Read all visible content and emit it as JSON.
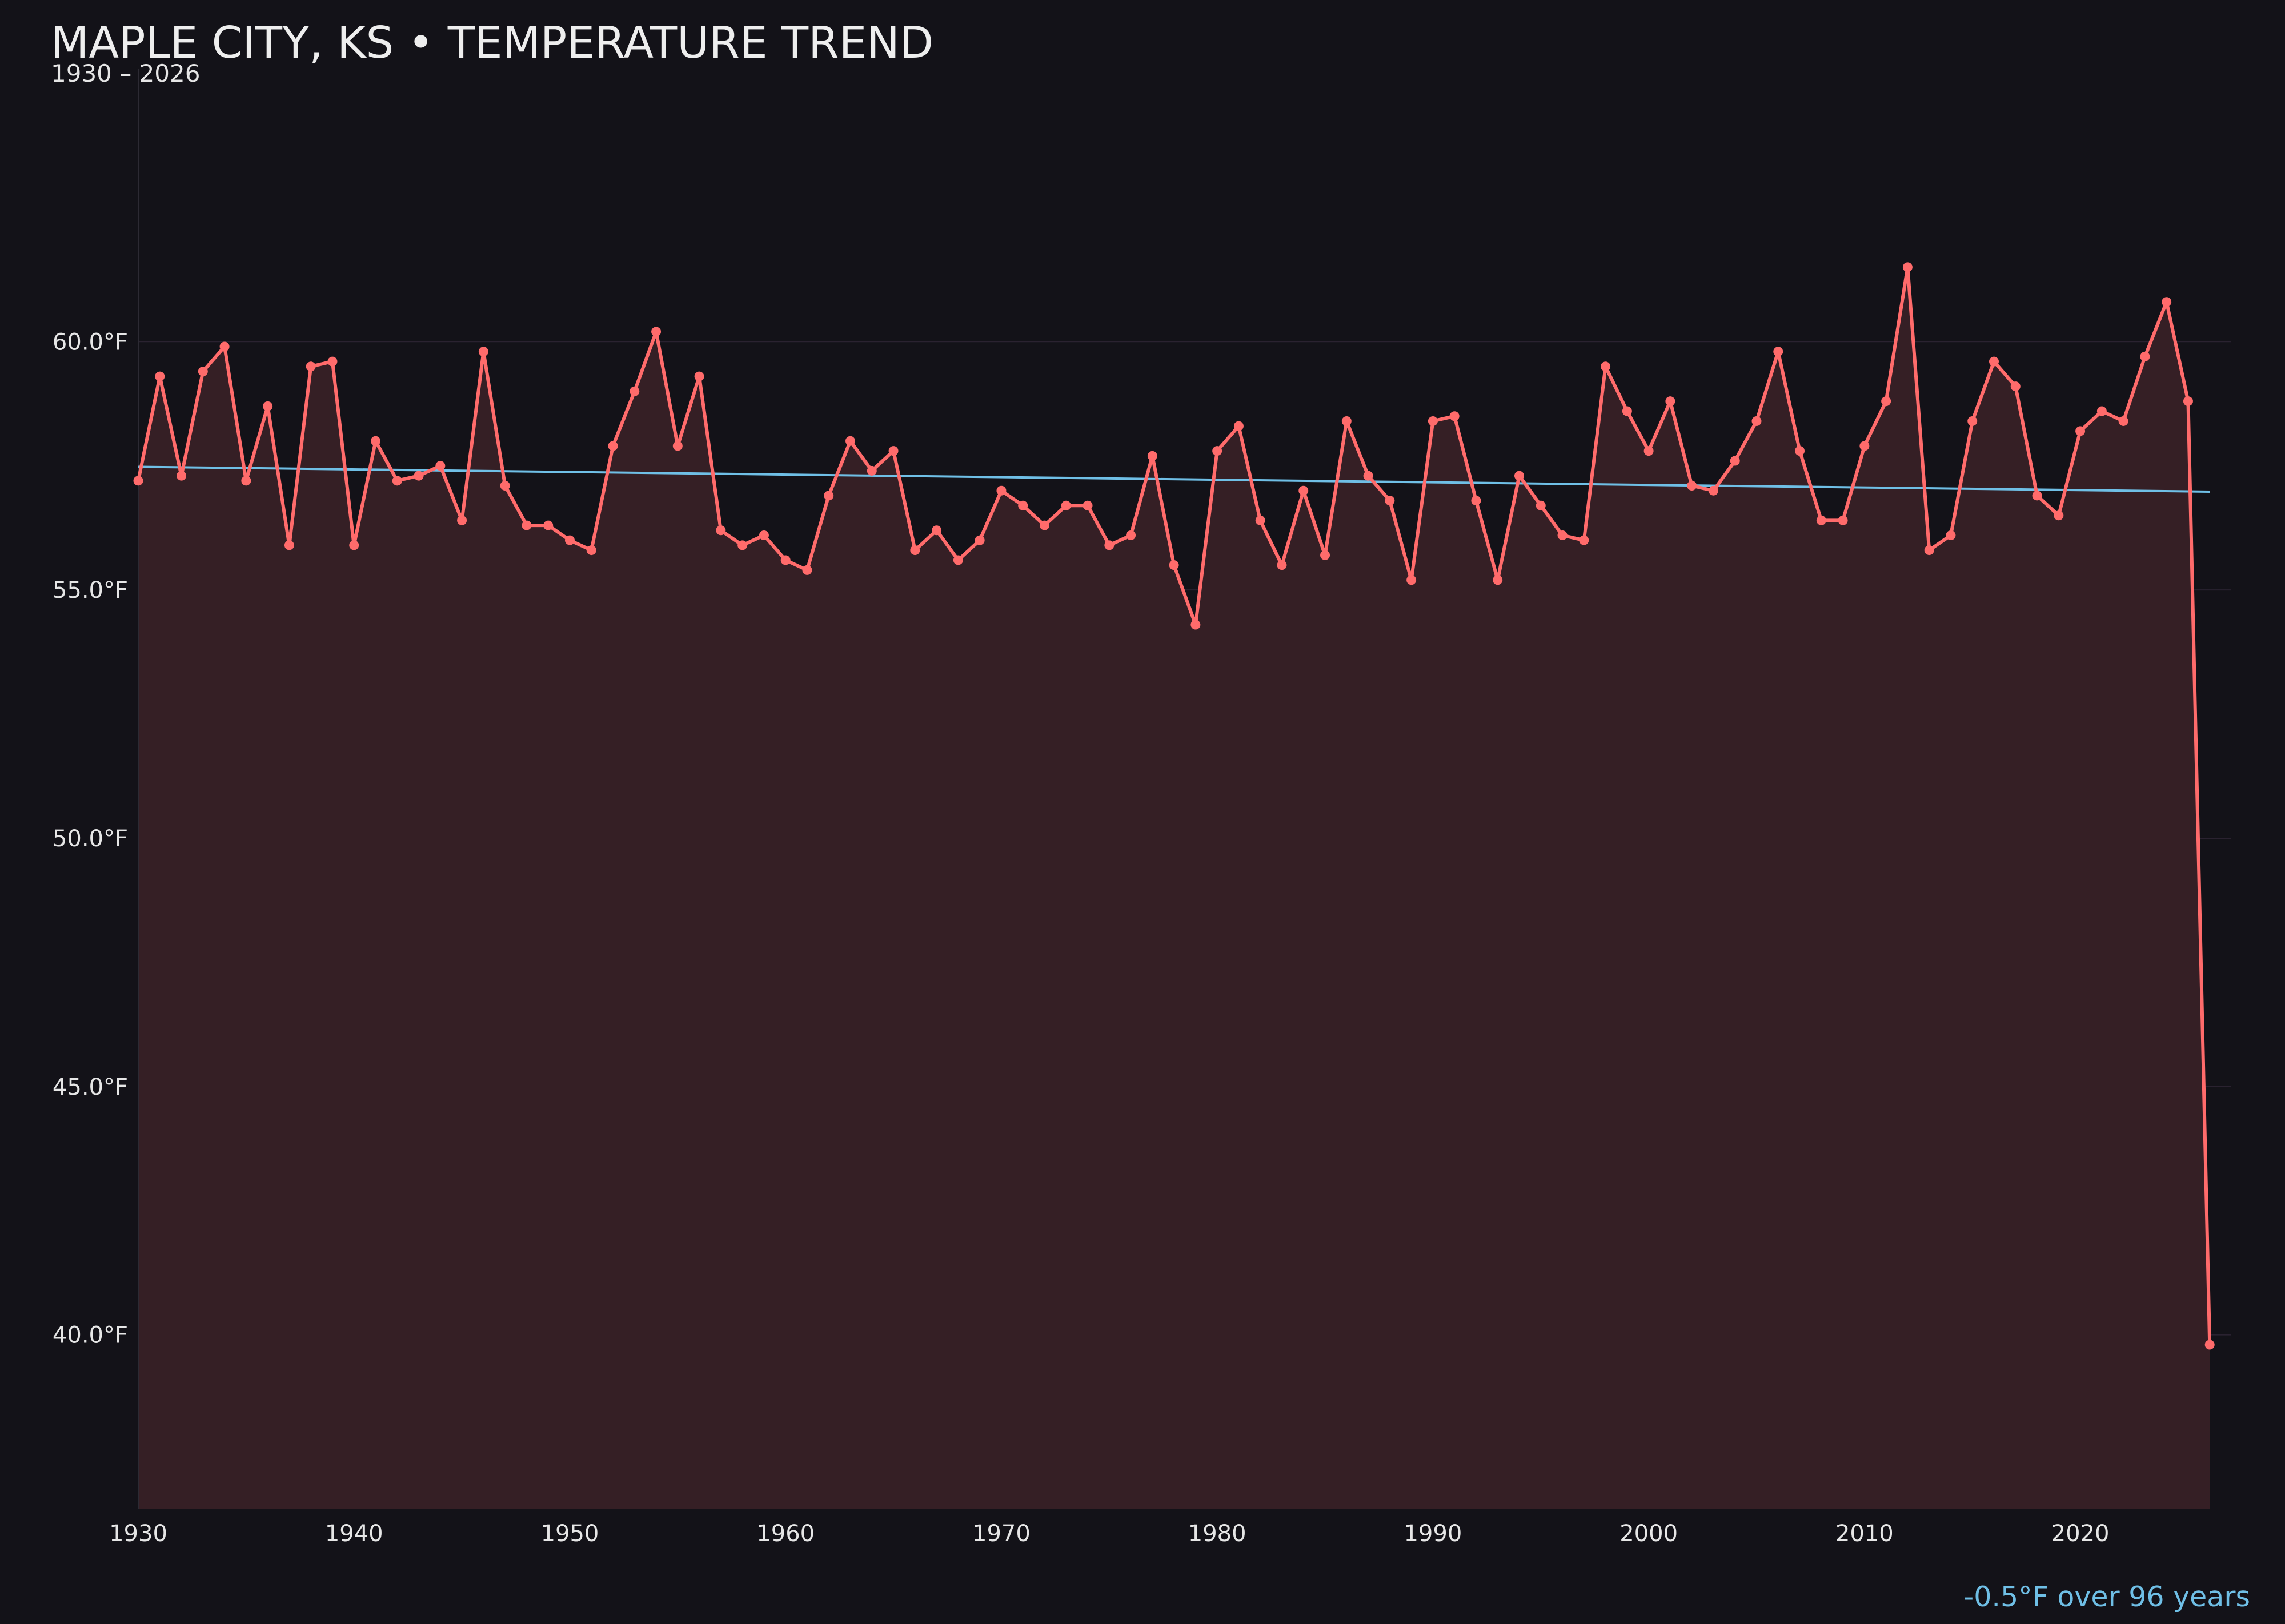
{
  "title": "MAPLE CITY, KS • TEMPERATURE TREND",
  "subtitle": "1930 – 2026",
  "trend_note": "-0.5°F over 96 years",
  "colors": {
    "background": "#131218",
    "series": "#ff6b6b",
    "area_fill": "#351f25",
    "trend": "#6fbfe6",
    "grid": "#2a2230"
  },
  "chart_data": {
    "type": "area",
    "title": "MAPLE CITY, KS • TEMPERATURE TREND",
    "subtitle": "1930 – 2026",
    "xlabel": "",
    "ylabel": "",
    "xlim": [
      1930,
      2027
    ],
    "ylim": [
      36.5,
      65.5
    ],
    "xticks": [
      1930,
      1940,
      1950,
      1960,
      1970,
      1980,
      1990,
      2000,
      2010,
      2020
    ],
    "xtick_labels": [
      "1930",
      "1940",
      "1950",
      "1960",
      "1970",
      "1980",
      "1990",
      "2000",
      "2010",
      "2020"
    ],
    "yticks": [
      40,
      45,
      50,
      55,
      60
    ],
    "ytick_labels": [
      "40.0°F",
      "45.0°F",
      "50.0°F",
      "55.0°F",
      "60.0°F"
    ],
    "grid": "horizontal",
    "series": [
      {
        "x": [
          1930,
          1931,
          1932,
          1933,
          1934,
          1935,
          1936,
          1937,
          1938,
          1939,
          1940,
          1941,
          1942,
          1943,
          1944,
          1945,
          1946,
          1947,
          1948,
          1949,
          1950,
          1951,
          1952,
          1953,
          1954,
          1955,
          1956,
          1957,
          1958,
          1959,
          1960,
          1961,
          1962,
          1963,
          1964,
          1965,
          1966,
          1967,
          1968,
          1969,
          1970,
          1971,
          1972,
          1973,
          1974,
          1975,
          1976,
          1977,
          1978,
          1979,
          1980,
          1981,
          1982,
          1983,
          1984,
          1985,
          1986,
          1987,
          1988,
          1989,
          1990,
          1991,
          1992,
          1993,
          1994,
          1995,
          1996,
          1997,
          1998,
          1999,
          2000,
          2001,
          2002,
          2003,
          2004,
          2005,
          2006,
          2007,
          2008,
          2009,
          2010,
          2011,
          2012,
          2013,
          2014,
          2015,
          2016,
          2017,
          2018,
          2019,
          2020,
          2021,
          2022,
          2023,
          2024,
          2025,
          2026
        ],
        "values": [
          57.2,
          59.3,
          57.3,
          59.4,
          59.9,
          57.2,
          58.7,
          55.9,
          59.5,
          59.6,
          55.9,
          58.0,
          57.2,
          57.3,
          57.5,
          56.4,
          59.8,
          57.1,
          56.3,
          56.3,
          56.0,
          55.8,
          57.9,
          59.0,
          60.2,
          57.9,
          59.3,
          56.2,
          55.9,
          56.1,
          55.6,
          55.4,
          56.9,
          58.0,
          57.4,
          57.8,
          55.8,
          56.2,
          55.6,
          56.0,
          57.0,
          56.7,
          56.3,
          56.7,
          56.7,
          55.9,
          56.1,
          57.7,
          55.5,
          54.3,
          57.8,
          58.3,
          56.4,
          55.5,
          57.0,
          55.7,
          58.4,
          57.3,
          56.8,
          55.2,
          58.4,
          58.5,
          56.8,
          55.2,
          57.3,
          56.7,
          56.1,
          56.0,
          59.5,
          58.6,
          57.8,
          58.8,
          57.1,
          57.0,
          57.6,
          58.4,
          59.8,
          57.8,
          56.4,
          56.4,
          57.9,
          58.8,
          61.5,
          55.8,
          56.1,
          58.4,
          59.6,
          59.1,
          56.9,
          56.5,
          58.2,
          58.6,
          58.4,
          59.7,
          60.8,
          58.8,
          39.8
        ]
      }
    ],
    "trend_line": {
      "x": [
        1930,
        2026
      ],
      "y": [
        57.48,
        56.98
      ]
    }
  }
}
